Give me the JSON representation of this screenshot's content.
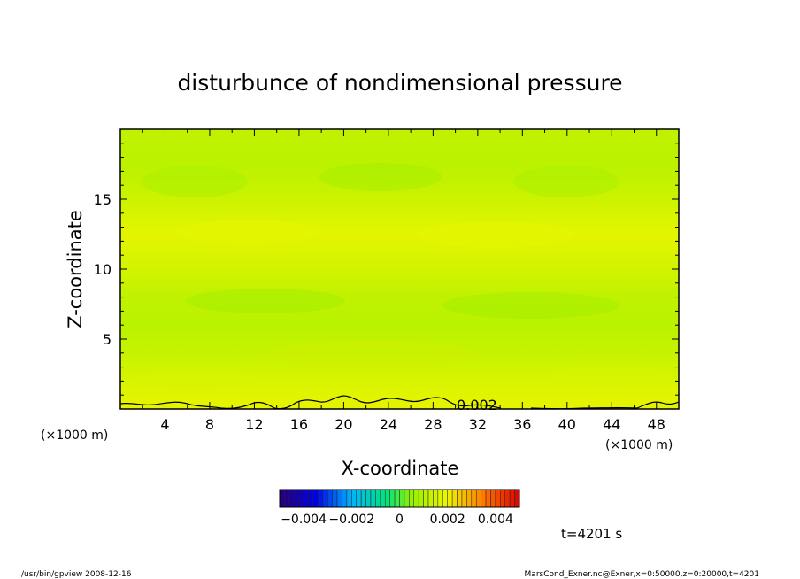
{
  "chart_data": {
    "type": "heatmap",
    "title": "disturbunce of nondimensional pressure",
    "xlabel": "X-coordinate",
    "ylabel": "Z-coordinate",
    "x_unit": "(×1000 m)",
    "y_unit": "(×1000 m)",
    "xlim": [
      0,
      50
    ],
    "ylim": [
      0,
      20
    ],
    "x_ticks": [
      4,
      8,
      12,
      16,
      20,
      24,
      28,
      32,
      36,
      40,
      44,
      48
    ],
    "y_ticks": [
      5,
      10,
      15
    ],
    "contour_label": "0.002",
    "colorbar": {
      "ticks": [
        {
          "value": -0.004,
          "label": "−0.004"
        },
        {
          "value": -0.002,
          "label": "−0.002"
        },
        {
          "value": 0,
          "label": "0"
        },
        {
          "value": 0.002,
          "label": "0.002"
        },
        {
          "value": 0.004,
          "label": "0.004"
        }
      ],
      "range": [
        -0.005,
        0.005
      ]
    },
    "field_bands": [
      {
        "z": 0.5,
        "value": 0.0018
      },
      {
        "z": 2.0,
        "value": 0.0016
      },
      {
        "z": 4.0,
        "value": 0.0013
      },
      {
        "z": 6.0,
        "value": 0.0011
      },
      {
        "z": 8.0,
        "value": 0.0012
      },
      {
        "z": 10.0,
        "value": 0.0015
      },
      {
        "z": 12.5,
        "value": 0.0018
      },
      {
        "z": 15.0,
        "value": 0.0014
      },
      {
        "z": 17.5,
        "value": 0.0011
      },
      {
        "z": 19.5,
        "value": 0.0012
      }
    ],
    "time_label": "t=4201 s"
  },
  "footer": {
    "left": "/usr/bin/gpview  2008-12-16",
    "right": "MarsCond_Exner.nc@Exner,x=0:50000,z=0:20000,t=4201"
  }
}
